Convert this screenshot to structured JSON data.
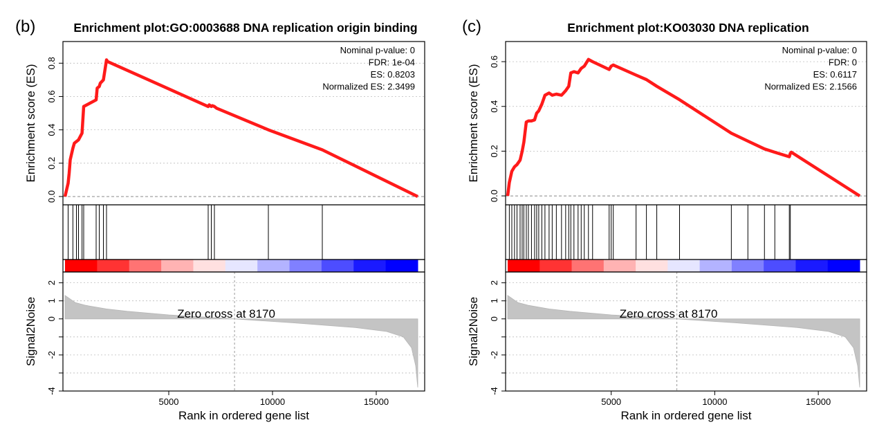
{
  "panels": [
    {
      "panel_label": "(b)",
      "stats": [
        "Nominal p-value: 0",
        "FDR: 1e-04",
        "ES: 0.8203",
        "Normalized ES: 2.3499"
      ],
      "zero_cross_label": "Zero cross at 8170",
      "hits": [
        150,
        380,
        550,
        650,
        820,
        900,
        1500,
        1650,
        1850,
        2000,
        6900,
        7050,
        7200,
        9800,
        12400
      ]
    },
    {
      "panel_label": "(c)",
      "stats": [
        "Nominal p-value: 0",
        "FDR: 0",
        "ES: 0.6117",
        "Normalized ES: 2.1566"
      ],
      "zero_cross_label": "Zero cross at 8170",
      "hits": [
        80,
        200,
        330,
        450,
        600,
        700,
        780,
        900,
        1000,
        1150,
        1300,
        1400,
        1500,
        1650,
        1800,
        2000,
        2150,
        2350,
        2600,
        2800,
        2950,
        3050,
        3200,
        3400,
        3550,
        3700,
        3900,
        4100,
        4900,
        5000,
        5100,
        6200,
        6700,
        7200,
        8300,
        10800,
        11600,
        12400,
        12900,
        13600,
        13650
      ]
    }
  ],
  "chart_data": [
    {
      "type": "line",
      "title": "Enrichment plot:GO:0003688 DNA replication origin binding",
      "ylabel": "Enrichment score (ES)",
      "xlabel": "Rank in ordered gene list",
      "xlim": [
        0,
        17000
      ],
      "ylim": [
        -0.05,
        0.93
      ],
      "yticks": [
        "0.0",
        "0.2",
        "0.4",
        "0.6",
        "0.8"
      ],
      "xticks": [
        "5000",
        "10000",
        "15000"
      ],
      "grid": true,
      "series": [
        {
          "x": [
            0,
            150,
            200,
            250,
            380,
            450,
            550,
            650,
            820,
            900,
            1500,
            1550,
            1650,
            1700,
            1850,
            1900,
            2000,
            2050,
            6900,
            6950,
            7050,
            7100,
            7200,
            7300,
            9800,
            12400,
            17000
          ],
          "y": [
            0.0,
            0.08,
            0.14,
            0.22,
            0.29,
            0.32,
            0.33,
            0.34,
            0.38,
            0.54,
            0.58,
            0.65,
            0.66,
            0.68,
            0.7,
            0.74,
            0.82,
            0.81,
            0.54,
            0.55,
            0.54,
            0.545,
            0.54,
            0.53,
            0.4,
            0.28,
            0.0
          ]
        }
      ],
      "signal": {
        "ylabel": "Signal2Noise",
        "ylim": [
          -4,
          2.6
        ],
        "yticks": [
          "2",
          "1",
          "0",
          "-2",
          "-4"
        ],
        "zero_cross": 8170,
        "x": [
          0,
          500,
          1000,
          2000,
          3000,
          5000,
          8170,
          11000,
          14000,
          15500,
          16300,
          16700,
          16900,
          17000
        ],
        "y": [
          1.3,
          0.9,
          0.75,
          0.55,
          0.42,
          0.22,
          0.0,
          -0.22,
          -0.48,
          -0.7,
          -1.0,
          -1.6,
          -2.6,
          -3.8
        ]
      }
    },
    {
      "type": "line",
      "title": "Enrichment plot:KO03030 DNA replication",
      "ylabel": "Enrichment score (ES)",
      "xlabel": "Rank in ordered gene list",
      "xlim": [
        0,
        17000
      ],
      "ylim": [
        -0.04,
        0.69
      ],
      "yticks": [
        "0.0",
        "0.2",
        "0.4",
        "0.6"
      ],
      "xticks": [
        "5000",
        "10000",
        "15000"
      ],
      "grid": true,
      "series": [
        {
          "x": [
            0,
            80,
            200,
            330,
            450,
            600,
            700,
            780,
            900,
            1000,
            1150,
            1300,
            1400,
            1500,
            1650,
            1800,
            2000,
            2150,
            2350,
            2600,
            2800,
            2950,
            3050,
            3200,
            3400,
            3550,
            3700,
            3900,
            4100,
            4900,
            5000,
            5100,
            6200,
            6700,
            7200,
            8300,
            10800,
            11600,
            12400,
            12900,
            13600,
            13650,
            13700,
            17000
          ],
          "y": [
            0.0,
            0.06,
            0.11,
            0.13,
            0.14,
            0.16,
            0.2,
            0.24,
            0.33,
            0.335,
            0.335,
            0.34,
            0.37,
            0.38,
            0.41,
            0.45,
            0.46,
            0.45,
            0.455,
            0.45,
            0.47,
            0.49,
            0.55,
            0.555,
            0.55,
            0.57,
            0.58,
            0.61,
            0.6,
            0.565,
            0.58,
            0.585,
            0.54,
            0.52,
            0.49,
            0.43,
            0.28,
            0.245,
            0.21,
            0.195,
            0.175,
            0.19,
            0.195,
            0.0
          ]
        }
      ],
      "signal": {
        "ylabel": "Signal2Noise",
        "ylim": [
          -4,
          2.6
        ],
        "yticks": [
          "2",
          "1",
          "0",
          "-2",
          "-4"
        ],
        "zero_cross": 8170,
        "x": [
          0,
          500,
          1000,
          2000,
          3000,
          5000,
          8170,
          11000,
          14000,
          15500,
          16300,
          16700,
          16900,
          17000
        ],
        "y": [
          1.3,
          0.9,
          0.75,
          0.55,
          0.42,
          0.22,
          0.0,
          -0.22,
          -0.48,
          -0.7,
          -1.0,
          -1.6,
          -2.6,
          -3.8
        ]
      }
    }
  ],
  "colors": {
    "es_line": "#ff1a1a",
    "axis": "#000000",
    "grid": "#bbbbbb",
    "signal_fill": "#c4c4c4",
    "heat": [
      "#ff0000",
      "#ff3333",
      "#ff7373",
      "#ffb3b3",
      "#ffe0e0",
      "#e6e6ff",
      "#b3b3ff",
      "#8080ff",
      "#4d4dff",
      "#1a1aff",
      "#0000ff"
    ]
  }
}
